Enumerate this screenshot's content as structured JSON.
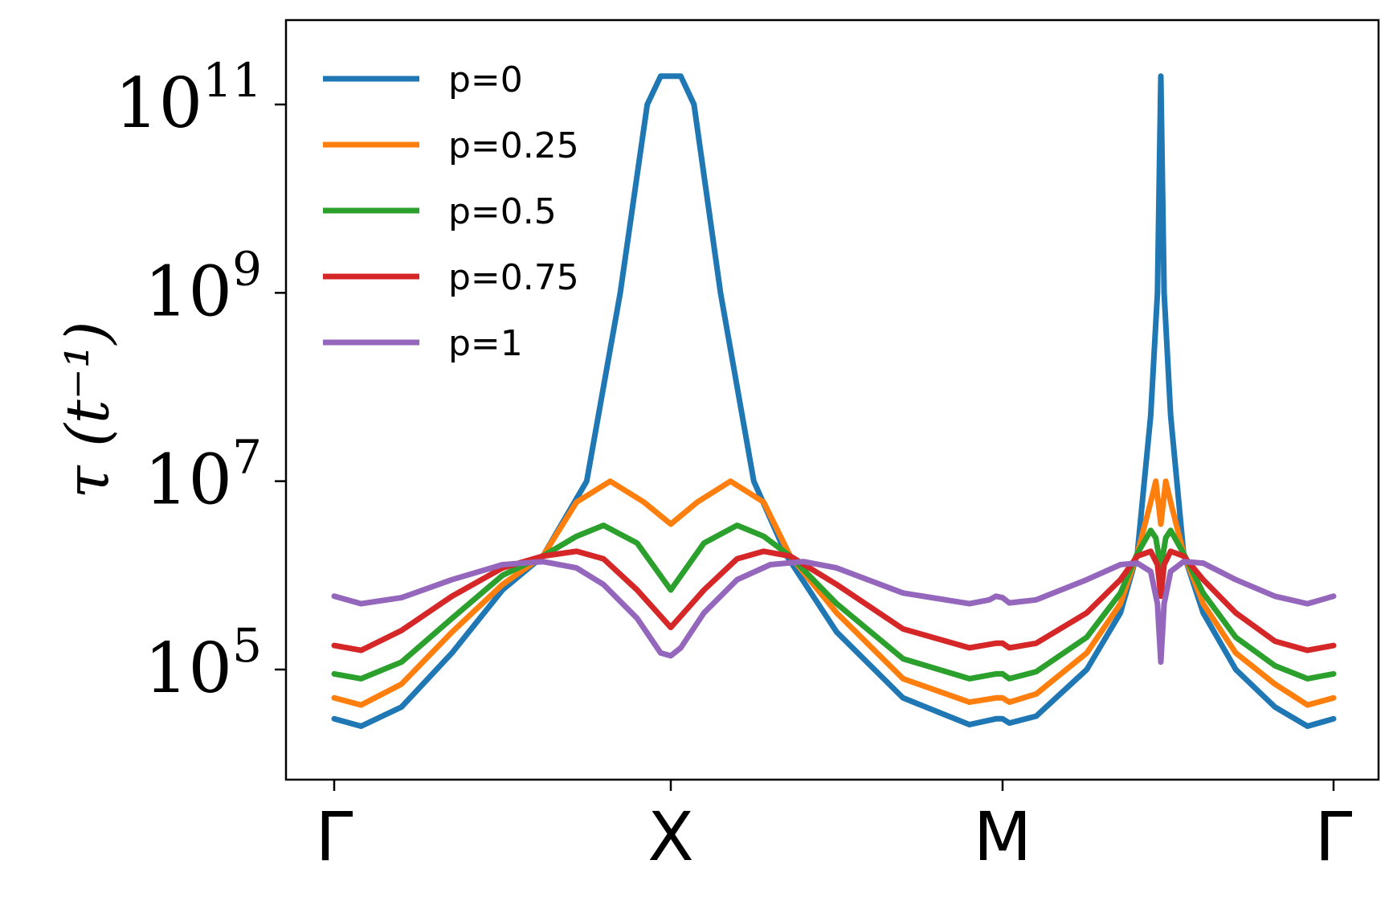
{
  "chart_data": {
    "type": "line",
    "title": "",
    "xlabel": "",
    "ylabel": "τ   (t⁻¹)",
    "y_scale": "log",
    "ylim": [
      3000,
      300000000000.0
    ],
    "x_ticks": [
      "Γ",
      "X",
      "M",
      "Γ"
    ],
    "y_ticks": [
      {
        "value": 100000,
        "base": "10",
        "exp": "5"
      },
      {
        "value": 10000000,
        "base": "10",
        "exp": "7"
      },
      {
        "value": 1000000000,
        "base": "10",
        "exp": "9"
      },
      {
        "value": 100000000000,
        "base": "10",
        "exp": "11"
      }
    ],
    "legend_position": "upper-left",
    "grid": false,
    "x_path_positions": [
      0,
      1,
      2,
      2.47,
      3
    ],
    "series": [
      {
        "name": "p=0",
        "color": "#1f77b4",
        "points": [
          [
            0,
            30000
          ],
          [
            0.08,
            25000
          ],
          [
            0.2,
            40000
          ],
          [
            0.35,
            150000
          ],
          [
            0.5,
            700000
          ],
          [
            0.62,
            1600000
          ],
          [
            0.75,
            10000000
          ],
          [
            0.85,
            1000000000
          ],
          [
            0.93,
            100000000000.0
          ],
          [
            0.97,
            200000000000.0
          ],
          [
            1.0,
            200000000000.0
          ],
          [
            1.03,
            200000000000.0
          ],
          [
            1.07,
            100000000000.0
          ],
          [
            1.15,
            1000000000
          ],
          [
            1.25,
            10000000
          ],
          [
            1.35,
            1600000
          ],
          [
            1.5,
            250000
          ],
          [
            1.7,
            50000
          ],
          [
            1.9,
            26000
          ],
          [
            1.98,
            30000
          ],
          [
            2.0,
            30000
          ],
          [
            2.02,
            27000
          ],
          [
            2.1,
            32000
          ],
          [
            2.25,
            100000
          ],
          [
            2.35,
            400000
          ],
          [
            2.4,
            1700000
          ],
          [
            2.44,
            50000000
          ],
          [
            2.46,
            1000000000.0
          ],
          [
            2.47,
            200000000000.0
          ],
          [
            2.48,
            1000000000.0
          ],
          [
            2.5,
            50000000
          ],
          [
            2.54,
            1700000
          ],
          [
            2.6,
            400000
          ],
          [
            2.7,
            100000
          ],
          [
            2.82,
            40000
          ],
          [
            2.92,
            25000
          ],
          [
            3.0,
            30000
          ]
        ]
      },
      {
        "name": "p=0.25",
        "color": "#ff7f0e",
        "points": [
          [
            0,
            50000
          ],
          [
            0.08,
            42000
          ],
          [
            0.2,
            70000
          ],
          [
            0.35,
            250000
          ],
          [
            0.5,
            800000
          ],
          [
            0.62,
            1600000
          ],
          [
            0.72,
            6000000
          ],
          [
            0.82,
            10000000
          ],
          [
            0.92,
            6000000
          ],
          [
            1.0,
            3500000
          ],
          [
            1.08,
            6000000
          ],
          [
            1.18,
            10000000
          ],
          [
            1.28,
            6000000
          ],
          [
            1.36,
            1600000
          ],
          [
            1.5,
            400000
          ],
          [
            1.7,
            80000
          ],
          [
            1.9,
            45000
          ],
          [
            1.98,
            50000
          ],
          [
            2.0,
            50000
          ],
          [
            2.02,
            45000
          ],
          [
            2.1,
            55000
          ],
          [
            2.25,
            150000
          ],
          [
            2.35,
            500000
          ],
          [
            2.4,
            1700000
          ],
          [
            2.44,
            6000000
          ],
          [
            2.455,
            10000000
          ],
          [
            2.47,
            3500000
          ],
          [
            2.485,
            10000000
          ],
          [
            2.5,
            6000000
          ],
          [
            2.54,
            1700000
          ],
          [
            2.6,
            500000
          ],
          [
            2.7,
            150000
          ],
          [
            2.82,
            70000
          ],
          [
            2.92,
            42000
          ],
          [
            3.0,
            50000
          ]
        ]
      },
      {
        "name": "p=0.5",
        "color": "#2ca02c",
        "points": [
          [
            0,
            90000
          ],
          [
            0.08,
            80000
          ],
          [
            0.2,
            120000
          ],
          [
            0.35,
            350000
          ],
          [
            0.5,
            1000000
          ],
          [
            0.62,
            1600000
          ],
          [
            0.72,
            2600000
          ],
          [
            0.8,
            3400000
          ],
          [
            0.9,
            2200000
          ],
          [
            1.0,
            700000
          ],
          [
            1.1,
            2200000
          ],
          [
            1.2,
            3400000
          ],
          [
            1.28,
            2600000
          ],
          [
            1.36,
            1600000
          ],
          [
            1.5,
            500000
          ],
          [
            1.7,
            130000
          ],
          [
            1.9,
            80000
          ],
          [
            1.98,
            90000
          ],
          [
            2.0,
            90000
          ],
          [
            2.02,
            80000
          ],
          [
            2.1,
            95000
          ],
          [
            2.25,
            220000
          ],
          [
            2.35,
            650000
          ],
          [
            2.4,
            1700000
          ],
          [
            2.44,
            3000000
          ],
          [
            2.455,
            2500000
          ],
          [
            2.47,
            1200000
          ],
          [
            2.485,
            2500000
          ],
          [
            2.5,
            3000000
          ],
          [
            2.54,
            1700000
          ],
          [
            2.6,
            650000
          ],
          [
            2.7,
            220000
          ],
          [
            2.82,
            110000
          ],
          [
            2.92,
            80000
          ],
          [
            3.0,
            90000
          ]
        ]
      },
      {
        "name": "p=0.75",
        "color": "#d62728",
        "points": [
          [
            0,
            180000
          ],
          [
            0.08,
            160000
          ],
          [
            0.2,
            260000
          ],
          [
            0.35,
            600000
          ],
          [
            0.5,
            1200000
          ],
          [
            0.62,
            1600000
          ],
          [
            0.72,
            1800000
          ],
          [
            0.8,
            1500000
          ],
          [
            0.9,
            700000
          ],
          [
            1.0,
            280000
          ],
          [
            1.1,
            700000
          ],
          [
            1.2,
            1500000
          ],
          [
            1.28,
            1800000
          ],
          [
            1.36,
            1600000
          ],
          [
            1.5,
            800000
          ],
          [
            1.7,
            270000
          ],
          [
            1.9,
            170000
          ],
          [
            1.98,
            190000
          ],
          [
            2.0,
            190000
          ],
          [
            2.02,
            170000
          ],
          [
            2.1,
            190000
          ],
          [
            2.25,
            400000
          ],
          [
            2.35,
            900000
          ],
          [
            2.4,
            1600000
          ],
          [
            2.44,
            1800000
          ],
          [
            2.46,
            1300000
          ],
          [
            2.47,
            600000
          ],
          [
            2.48,
            1300000
          ],
          [
            2.5,
            1800000
          ],
          [
            2.54,
            1600000
          ],
          [
            2.6,
            900000
          ],
          [
            2.7,
            400000
          ],
          [
            2.82,
            200000
          ],
          [
            2.92,
            160000
          ],
          [
            3.0,
            180000
          ]
        ]
      },
      {
        "name": "p=1",
        "color": "#9467bd",
        "points": [
          [
            0,
            600000
          ],
          [
            0.08,
            500000
          ],
          [
            0.2,
            580000
          ],
          [
            0.35,
            900000
          ],
          [
            0.5,
            1300000
          ],
          [
            0.62,
            1400000
          ],
          [
            0.72,
            1200000
          ],
          [
            0.8,
            800000
          ],
          [
            0.9,
            350000
          ],
          [
            0.97,
            150000
          ],
          [
            1.0,
            140000
          ],
          [
            1.03,
            170000
          ],
          [
            1.1,
            400000
          ],
          [
            1.2,
            900000
          ],
          [
            1.3,
            1300000
          ],
          [
            1.4,
            1400000
          ],
          [
            1.5,
            1200000
          ],
          [
            1.7,
            650000
          ],
          [
            1.9,
            500000
          ],
          [
            1.96,
            550000
          ],
          [
            1.98,
            600000
          ],
          [
            2.0,
            580000
          ],
          [
            2.02,
            510000
          ],
          [
            2.1,
            550000
          ],
          [
            2.25,
            900000
          ],
          [
            2.35,
            1300000
          ],
          [
            2.4,
            1350000
          ],
          [
            2.44,
            1100000
          ],
          [
            2.46,
            500000
          ],
          [
            2.47,
            120000
          ],
          [
            2.48,
            500000
          ],
          [
            2.5,
            1100000
          ],
          [
            2.54,
            1400000
          ],
          [
            2.6,
            1350000
          ],
          [
            2.7,
            900000
          ],
          [
            2.82,
            600000
          ],
          [
            2.92,
            500000
          ],
          [
            3.0,
            600000
          ]
        ]
      }
    ]
  }
}
